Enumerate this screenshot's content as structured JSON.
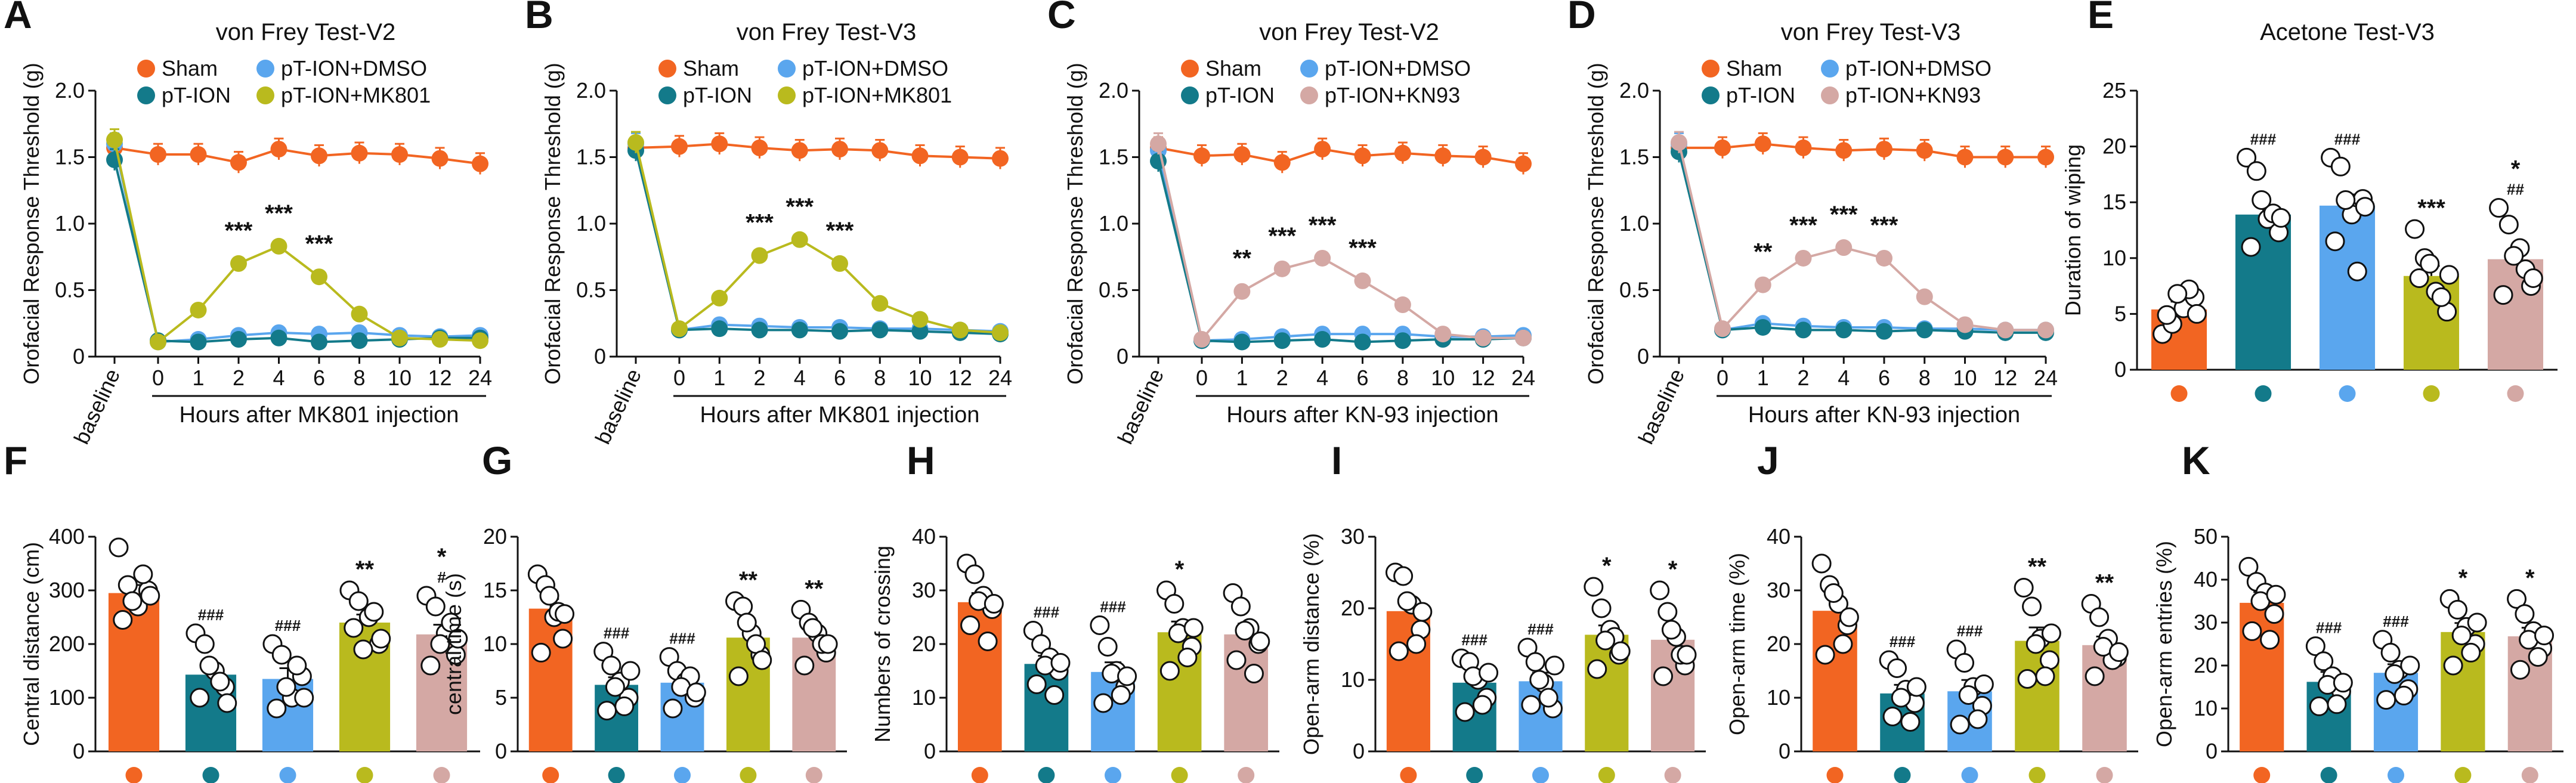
{
  "colors": {
    "sham": "#F26522",
    "pt_ion": "#137A8A",
    "dmso": "#5AA6EE",
    "mk801": "#B9BA1E",
    "kn93": "#D4A8A4",
    "axis": "#111111"
  },
  "chart_data": [
    {
      "panel": "A",
      "type": "line",
      "title": "von Frey Test-V2",
      "ylabel": "Orofacial Response Threshold (g)",
      "xlabel": "Hours after MK801 injection",
      "ylim": [
        0,
        2
      ],
      "yticks": [
        "0",
        "0.5",
        "1.0",
        "1.5",
        "2.0"
      ],
      "categories": [
        "baseline",
        "0",
        "1",
        "2",
        "4",
        "6",
        "8",
        "10",
        "12",
        "24"
      ],
      "legend": [
        "Sham",
        "pT-ION",
        "pT-ION+DMSO",
        "pT-ION+MK801"
      ],
      "series": [
        {
          "name": "Sham",
          "color": "sham",
          "values": [
            1.57,
            1.52,
            1.52,
            1.46,
            1.56,
            1.51,
            1.53,
            1.52,
            1.49,
            1.45
          ]
        },
        {
          "name": "pT-ION",
          "color": "pt_ion",
          "values": [
            1.48,
            0.12,
            0.11,
            0.13,
            0.14,
            0.11,
            0.12,
            0.13,
            0.14,
            0.14
          ]
        },
        {
          "name": "pT-ION+DMSO",
          "color": "dmso",
          "values": [
            1.6,
            0.11,
            0.13,
            0.16,
            0.18,
            0.17,
            0.18,
            0.16,
            0.15,
            0.16
          ]
        },
        {
          "name": "pT-ION+MK801",
          "color": "mk801",
          "values": [
            1.63,
            0.11,
            0.35,
            0.7,
            0.83,
            0.6,
            0.32,
            0.14,
            0.13,
            0.12
          ]
        }
      ],
      "annotations": [
        {
          "x": "2",
          "text": "***"
        },
        {
          "x": "4",
          "text": "***"
        },
        {
          "x": "6",
          "text": "***"
        }
      ]
    },
    {
      "panel": "B",
      "type": "line",
      "title": "von Frey Test-V3",
      "ylabel": "Orofacial Response Threshold (g)",
      "xlabel": "Hours after MK801 injection",
      "ylim": [
        0,
        2
      ],
      "yticks": [
        "0",
        "0.5",
        "1.0",
        "1.5",
        "2.0"
      ],
      "categories": [
        "baseline",
        "0",
        "1",
        "2",
        "4",
        "6",
        "8",
        "10",
        "12",
        "24"
      ],
      "legend": [
        "Sham",
        "pT-ION",
        "pT-ION+DMSO",
        "pT-ION+MK801"
      ],
      "series": [
        {
          "name": "Sham",
          "color": "sham",
          "values": [
            1.57,
            1.58,
            1.6,
            1.57,
            1.55,
            1.56,
            1.55,
            1.51,
            1.5,
            1.49
          ]
        },
        {
          "name": "pT-ION",
          "color": "pt_ion",
          "values": [
            1.55,
            0.2,
            0.21,
            0.2,
            0.2,
            0.19,
            0.2,
            0.19,
            0.18,
            0.17
          ]
        },
        {
          "name": "pT-ION+DMSO",
          "color": "dmso",
          "values": [
            1.6,
            0.2,
            0.24,
            0.23,
            0.22,
            0.22,
            0.21,
            0.21,
            0.2,
            0.19
          ]
        },
        {
          "name": "pT-ION+MK801",
          "color": "mk801",
          "values": [
            1.61,
            0.21,
            0.44,
            0.76,
            0.88,
            0.7,
            0.4,
            0.28,
            0.2,
            0.18
          ]
        }
      ],
      "annotations": [
        {
          "x": "2",
          "text": "***"
        },
        {
          "x": "4",
          "text": "***"
        },
        {
          "x": "6",
          "text": "***"
        }
      ]
    },
    {
      "panel": "C",
      "type": "line",
      "title": "von Frey Test-V2",
      "ylabel": "Orofacial Response Threshold (g)",
      "xlabel": "Hours after KN-93 injection",
      "ylim": [
        0,
        2
      ],
      "yticks": [
        "0",
        "0.5",
        "1.0",
        "1.5",
        "2.0"
      ],
      "categories": [
        "baseline",
        "0",
        "1",
        "2",
        "4",
        "6",
        "8",
        "10",
        "12",
        "24"
      ],
      "legend": [
        "Sham",
        "pT-ION",
        "pT-ION+DMSO",
        "pT-ION+KN93"
      ],
      "series": [
        {
          "name": "Sham",
          "color": "sham",
          "values": [
            1.57,
            1.51,
            1.52,
            1.46,
            1.56,
            1.51,
            1.53,
            1.51,
            1.5,
            1.45
          ]
        },
        {
          "name": "pT-ION",
          "color": "pt_ion",
          "values": [
            1.47,
            0.12,
            0.11,
            0.12,
            0.13,
            0.11,
            0.12,
            0.13,
            0.13,
            0.14
          ]
        },
        {
          "name": "pT-ION+DMSO",
          "color": "dmso",
          "values": [
            1.55,
            0.12,
            0.13,
            0.15,
            0.17,
            0.17,
            0.17,
            0.15,
            0.15,
            0.16
          ]
        },
        {
          "name": "pT-ION+KN93",
          "color": "kn93",
          "values": [
            1.6,
            0.13,
            0.49,
            0.66,
            0.74,
            0.57,
            0.39,
            0.17,
            0.14,
            0.14
          ]
        }
      ],
      "annotations": [
        {
          "x": "1",
          "text": "**"
        },
        {
          "x": "2",
          "text": "***"
        },
        {
          "x": "4",
          "text": "***"
        },
        {
          "x": "6",
          "text": "***"
        }
      ]
    },
    {
      "panel": "D",
      "type": "line",
      "title": "von Frey Test-V3",
      "ylabel": "Orofacial Response Threshold (g)",
      "xlabel": "Hours after KN-93 injection",
      "ylim": [
        0,
        2
      ],
      "yticks": [
        "0",
        "0.5",
        "1.0",
        "1.5",
        "2.0"
      ],
      "categories": [
        "baseline",
        "0",
        "1",
        "2",
        "4",
        "6",
        "8",
        "10",
        "12",
        "24"
      ],
      "legend": [
        "Sham",
        "pT-ION",
        "pT-ION+DMSO",
        "pT-ION+KN93"
      ],
      "series": [
        {
          "name": "Sham",
          "color": "sham",
          "values": [
            1.57,
            1.57,
            1.6,
            1.57,
            1.55,
            1.56,
            1.55,
            1.5,
            1.5,
            1.5
          ]
        },
        {
          "name": "pT-ION",
          "color": "pt_ion",
          "values": [
            1.54,
            0.2,
            0.22,
            0.2,
            0.2,
            0.19,
            0.2,
            0.19,
            0.18,
            0.18
          ]
        },
        {
          "name": "pT-ION+DMSO",
          "color": "dmso",
          "values": [
            1.6,
            0.2,
            0.25,
            0.23,
            0.22,
            0.22,
            0.21,
            0.21,
            0.2,
            0.2
          ]
        },
        {
          "name": "pT-ION+KN93",
          "color": "kn93",
          "values": [
            1.61,
            0.21,
            0.54,
            0.74,
            0.82,
            0.74,
            0.45,
            0.24,
            0.2,
            0.2
          ]
        }
      ],
      "annotations": [
        {
          "x": "1",
          "text": "**"
        },
        {
          "x": "2",
          "text": "***"
        },
        {
          "x": "4",
          "text": "***"
        },
        {
          "x": "6",
          "text": "***"
        }
      ]
    },
    {
      "panel": "E",
      "type": "bar",
      "title": "Acetone Test-V3",
      "ylabel": "Duration of wiping",
      "ylim": [
        0,
        25
      ],
      "yticks": [
        "0",
        "5",
        "10",
        "15",
        "20",
        "25"
      ],
      "categories": [
        "Sham",
        "pT-ION",
        "pT-ION+DMSO",
        "pT-ION+MK801",
        "pT-ION+KN93"
      ],
      "colors": [
        "sham",
        "pt_ion",
        "dmso",
        "mk801",
        "kn93"
      ],
      "values": [
        5.4,
        13.9,
        14.7,
        8.4,
        9.9
      ],
      "sem": [
        0.7,
        0.8,
        1.0,
        0.9,
        0.8
      ],
      "points": [
        [
          3.2,
          4.1,
          5.5,
          6.5,
          4.9,
          7.2,
          6.8,
          5.0
        ],
        [
          19.0,
          17.8,
          13.5,
          12.3,
          11.0,
          14.0,
          15.2,
          13.6
        ],
        [
          19.0,
          18.2,
          13.9,
          15.3,
          11.5,
          8.8,
          15.2,
          14.6
        ],
        [
          12.6,
          10.0,
          7.0,
          5.2,
          8.2,
          6.5,
          9.5,
          8.5
        ],
        [
          14.5,
          13.0,
          10.9,
          7.5,
          6.7,
          9.0,
          10.2,
          8.2
        ]
      ],
      "annotations": [
        [],
        [
          "###"
        ],
        [
          "###"
        ],
        [
          "***"
        ],
        [
          "*",
          "##"
        ]
      ]
    },
    {
      "panel": "F",
      "type": "bar",
      "ylabel": "Central distance (cm)",
      "ylim": [
        0,
        400
      ],
      "yticks": [
        "0",
        "100",
        "200",
        "300",
        "400"
      ],
      "categories": [
        "Sham",
        "pT-ION",
        "pT-ION+DMSO",
        "pT-ION+MK801",
        "pT-ION+KN93"
      ],
      "colors": [
        "sham",
        "pt_ion",
        "dmso",
        "mk801",
        "kn93"
      ],
      "values": [
        295,
        143,
        135,
        240,
        218
      ],
      "sem": [
        15,
        18,
        20,
        15,
        18
      ],
      "points": [
        [
          380,
          310,
          270,
          300,
          245,
          330,
          280,
          290
        ],
        [
          220,
          200,
          150,
          120,
          100,
          130,
          160,
          90
        ],
        [
          200,
          180,
          100,
          140,
          80,
          160,
          120,
          100
        ],
        [
          300,
          280,
          250,
          200,
          230,
          260,
          190,
          210
        ],
        [
          290,
          270,
          220,
          180,
          160,
          240,
          200,
          210
        ]
      ],
      "annotations": [
        [],
        [
          "###"
        ],
        [
          "###"
        ],
        [
          "**"
        ],
        [
          "*",
          "#"
        ]
      ]
    },
    {
      "panel": "G",
      "type": "bar",
      "ylabel": "central time (s)",
      "ylim": [
        0,
        20
      ],
      "yticks": [
        "0",
        "5",
        "10",
        "15",
        "20"
      ],
      "categories": [
        "Sham",
        "pT-ION",
        "pT-ION+DMSO",
        "pT-ION+MK801",
        "pT-ION+KN93"
      ],
      "colors": [
        "sham",
        "pt_ion",
        "dmso",
        "mk801",
        "kn93"
      ],
      "values": [
        13.3,
        6.2,
        6.4,
        10.6,
        10.6
      ],
      "sem": [
        0.9,
        0.7,
        0.6,
        0.9,
        0.7
      ],
      "points": [
        [
          16.5,
          15.5,
          12.5,
          10.5,
          9.2,
          13.0,
          14.5,
          12.8
        ],
        [
          9.3,
          8.0,
          6.5,
          5.0,
          3.8,
          4.2,
          6.0,
          7.5
        ],
        [
          8.8,
          7.5,
          6.5,
          5.0,
          4.0,
          7.0,
          6.0,
          5.5
        ],
        [
          14.0,
          13.5,
          11.0,
          9.0,
          7.0,
          10.0,
          12.0,
          8.5
        ],
        [
          13.2,
          12.0,
          11.0,
          9.2,
          8.0,
          10.0,
          11.5,
          10.0
        ]
      ],
      "annotations": [
        [],
        [
          "###"
        ],
        [
          "###"
        ],
        [
          "**"
        ],
        [
          "**"
        ]
      ]
    },
    {
      "panel": "H",
      "type": "bar",
      "ylabel": "Numbers of crossing",
      "ylim": [
        0,
        40
      ],
      "yticks": [
        "0",
        "10",
        "20",
        "30",
        "40"
      ],
      "categories": [
        "Sham",
        "pT-ION",
        "pT-ION+DMSO",
        "pT-ION+MK801",
        "pT-ION+KN93"
      ],
      "colors": [
        "sham",
        "pt_ion",
        "dmso",
        "mk801",
        "kn93"
      ],
      "values": [
        27.8,
        16.3,
        14.8,
        22.2,
        21.8
      ],
      "sem": [
        1.7,
        1.5,
        1.8,
        2.0,
        2.0
      ],
      "points": [
        [
          35.0,
          33.0,
          29.0,
          26.5,
          23.5,
          20.5,
          28.0,
          27.5
        ],
        [
          22.5,
          20.0,
          17.5,
          15.0,
          12.5,
          10.5,
          16.0,
          16.5
        ],
        [
          23.5,
          19.5,
          15.0,
          12.0,
          9.0,
          10.5,
          14.5,
          14.0
        ],
        [
          30.0,
          27.5,
          23.0,
          19.5,
          15.0,
          17.5,
          22.0,
          23.0
        ],
        [
          29.5,
          27.0,
          23.0,
          20.0,
          17.0,
          14.5,
          22.5,
          20.5
        ]
      ],
      "annotations": [
        [],
        [
          "###"
        ],
        [
          "###"
        ],
        [
          "*"
        ],
        []
      ]
    },
    {
      "panel": "I",
      "type": "bar",
      "ylabel": "Open-arm distance (%)",
      "ylim": [
        0,
        30
      ],
      "yticks": [
        "0",
        "10",
        "20",
        "30"
      ],
      "categories": [
        "Sham",
        "pT-ION",
        "pT-ION+DMSO",
        "pT-ION+MK801",
        "pT-ION+KN93"
      ],
      "colors": [
        "sham",
        "pt_ion",
        "dmso",
        "mk801",
        "kn93"
      ],
      "values": [
        19.6,
        9.6,
        9.8,
        16.3,
        15.6
      ],
      "sem": [
        1.5,
        1.1,
        1.2,
        1.3,
        1.4
      ],
      "points": [
        [
          25.0,
          24.5,
          20.5,
          17.0,
          14.0,
          15.0,
          21.0,
          19.5
        ],
        [
          13.0,
          12.5,
          10.0,
          7.5,
          5.5,
          6.5,
          10.5,
          11.0
        ],
        [
          14.5,
          12.5,
          9.5,
          6.0,
          6.5,
          7.5,
          10.0,
          12.0
        ],
        [
          23.0,
          20.0,
          17.0,
          13.5,
          11.5,
          16.0,
          15.5,
          14.0
        ],
        [
          22.5,
          19.5,
          16.0,
          12.0,
          10.5,
          13.5,
          17.0,
          13.5
        ]
      ],
      "annotations": [
        [],
        [
          "###"
        ],
        [
          "###"
        ],
        [
          "*"
        ],
        [
          "*"
        ]
      ]
    },
    {
      "panel": "J",
      "type": "bar",
      "ylabel": "Open-arm time (%)",
      "ylim": [
        0,
        40
      ],
      "yticks": [
        "0",
        "10",
        "20",
        "30",
        "40"
      ],
      "categories": [
        "Sham",
        "pT-ION",
        "pT-ION+DMSO",
        "pT-ION+MK801",
        "pT-ION+KN93"
      ],
      "colors": [
        "sham",
        "pt_ion",
        "dmso",
        "mk801",
        "kn93"
      ],
      "values": [
        26.2,
        10.8,
        11.2,
        20.6,
        19.8
      ],
      "sem": [
        2.2,
        1.6,
        2.1,
        2.5,
        1.6
      ],
      "points": [
        [
          35.0,
          31.0,
          27.5,
          23.5,
          18.0,
          20.0,
          29.5,
          25.0
        ],
        [
          17.0,
          15.5,
          11.5,
          9.0,
          6.5,
          5.5,
          10.0,
          12.0
        ],
        [
          19.0,
          16.5,
          12.0,
          8.5,
          5.0,
          6.0,
          10.5,
          12.5
        ],
        [
          30.5,
          27.0,
          21.0,
          17.0,
          13.5,
          14.0,
          20.0,
          22.0
        ],
        [
          27.5,
          25.0,
          21.0,
          17.5,
          14.0,
          17.0,
          19.5,
          18.5
        ]
      ],
      "annotations": [
        [],
        [
          "###"
        ],
        [
          "###"
        ],
        [
          "**"
        ],
        [
          "**"
        ]
      ]
    },
    {
      "panel": "K",
      "type": "bar",
      "ylabel": "Open-arm entries (%)",
      "ylim": [
        0,
        50
      ],
      "yticks": [
        "0",
        "10",
        "20",
        "30",
        "40",
        "50"
      ],
      "categories": [
        "Sham",
        "pT-ION",
        "pT-ION+DMSO",
        "pT-ION+MK801",
        "pT-ION+KN93"
      ],
      "colors": [
        "sham",
        "pt_ion",
        "dmso",
        "mk801",
        "kn93"
      ],
      "values": [
        34.6,
        16.2,
        18.3,
        27.8,
        26.8
      ],
      "sem": [
        2.5,
        2.3,
        2.0,
        2.1,
        2.0
      ],
      "points": [
        [
          43.0,
          39.5,
          37.0,
          32.0,
          28.0,
          26.0,
          35.0,
          36.5
        ],
        [
          24.5,
          21.0,
          17.5,
          14.0,
          10.5,
          11.0,
          15.5,
          16.0
        ],
        [
          26.0,
          23.0,
          19.0,
          14.5,
          12.0,
          13.0,
          18.0,
          20.0
        ],
        [
          35.5,
          33.0,
          29.0,
          25.0,
          20.0,
          23.0,
          27.0,
          30.0
        ],
        [
          35.5,
          32.0,
          28.0,
          24.0,
          19.0,
          22.0,
          26.0,
          27.0
        ]
      ],
      "annotations": [
        [],
        [
          "###"
        ],
        [
          "###"
        ],
        [
          "*"
        ],
        [
          "*"
        ]
      ]
    }
  ]
}
